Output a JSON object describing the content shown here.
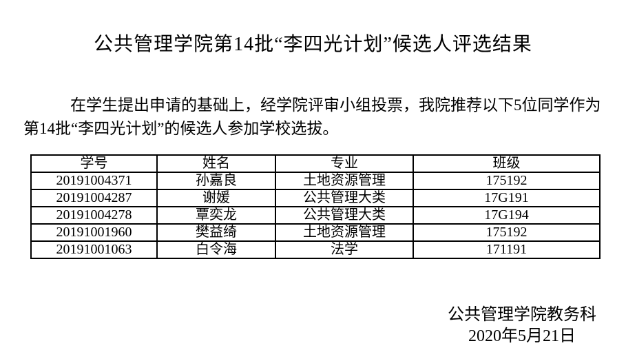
{
  "document": {
    "title": "公共管理学院第14批“李四光计划”候选人评选结果",
    "paragraph": "在学生提出申请的基础上，经学院评审小组投票，我院推荐以下5位同学作为第14批“李四光计划”的候选人参加学校选拔。",
    "table": {
      "headers": [
        "学号",
        "姓名",
        "专业",
        "班级"
      ],
      "rows": [
        [
          "20191004371",
          "孙嘉良",
          "土地资源管理",
          "175192"
        ],
        [
          "20191004287",
          "谢媛",
          "公共管理大类",
          "17G191"
        ],
        [
          "20191004278",
          "覃奕龙",
          "公共管理大类",
          "17G194"
        ],
        [
          "20191001960",
          "樊益绮",
          "土地资源管理",
          "175192"
        ],
        [
          "20191001063",
          "白令海",
          "法学",
          "171191"
        ]
      ]
    },
    "signature": "公共管理学院教务科",
    "date": "2020年5月21日"
  }
}
